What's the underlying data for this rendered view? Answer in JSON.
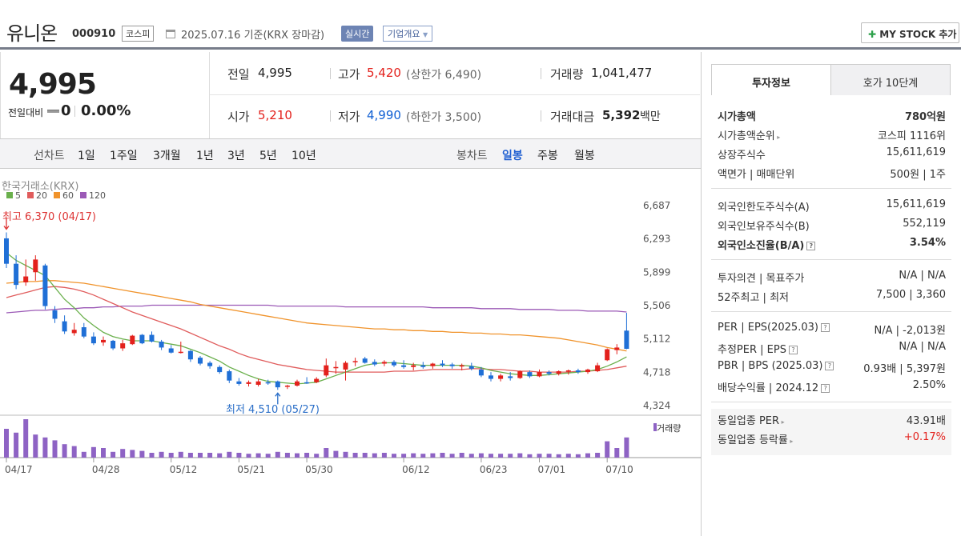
{
  "header": {
    "name": "유니온",
    "code": "000910",
    "market": "코스피",
    "date": "2025.07.16 기준(KRX 장마감)",
    "realtime": "실시간",
    "company_info": "기업개요",
    "mystock": "MY STOCK 추가"
  },
  "price": {
    "current": "4,995",
    "change_label": "전일대비",
    "change": "0",
    "change_pct": "0.00%"
  },
  "summary": {
    "prev_label": "전일",
    "prev": "4,995",
    "high_label": "고가",
    "high": "5,420",
    "upper_limit": "(상한가 6,490)",
    "volume_label": "거래량",
    "volume": "1,041,477",
    "open_label": "시가",
    "open": "5,210",
    "low_label": "저가",
    "low": "4,990",
    "lower_limit": "(하한가 3,500)",
    "amount_label": "거래대금",
    "amount": "5,392",
    "amount_unit": "백만"
  },
  "toolbar": {
    "line_label": "선차트",
    "periods": [
      "1일",
      "1주일",
      "3개월",
      "1년",
      "3년",
      "5년",
      "10년"
    ],
    "candle_label": "봉차트",
    "candles": [
      "일봉",
      "주봉",
      "월봉"
    ]
  },
  "chart_data": {
    "type": "candlestick",
    "source": "한국거래소(KRX)",
    "legend": [
      "5",
      "20",
      "60",
      "120"
    ],
    "legend_colors": [
      "#6ab04c",
      "#e05c5c",
      "#f0932b",
      "#9b59b6"
    ],
    "y_ticks": [
      "6,687",
      "6,293",
      "5,899",
      "5,506",
      "5,112",
      "4,718",
      "4,324"
    ],
    "x_ticks": [
      "04/17",
      "04/28",
      "05/12",
      "05/21",
      "05/30",
      "06/12",
      "06/23",
      "07/01",
      "07/10"
    ],
    "high_annot": "최고 6,370 (04/17)",
    "low_annot": "최저 4,510 (05/27)",
    "volume_label": "거래량",
    "ohlc": [
      [
        6300,
        6370,
        5950,
        6000
      ],
      [
        6000,
        6100,
        5700,
        5750
      ],
      [
        5780,
        6050,
        5740,
        5850
      ],
      [
        5900,
        6100,
        5800,
        6050
      ],
      [
        5980,
        6000,
        5460,
        5500
      ],
      [
        5450,
        5500,
        5300,
        5350
      ],
      [
        5320,
        5390,
        5170,
        5200
      ],
      [
        5180,
        5300,
        5150,
        5220
      ],
      [
        5250,
        5300,
        5120,
        5140
      ],
      [
        5140,
        5190,
        5040,
        5060
      ],
      [
        5070,
        5140,
        5030,
        5100
      ],
      [
        5090,
        5100,
        4980,
        5000
      ],
      [
        5000,
        5100,
        4970,
        5060
      ],
      [
        5050,
        5160,
        5040,
        5150
      ],
      [
        5160,
        5170,
        5050,
        5060
      ],
      [
        5160,
        5200,
        5070,
        5080
      ],
      [
        5080,
        5100,
        4980,
        5010
      ],
      [
        5000,
        5040,
        4940,
        4950
      ],
      [
        4960,
        5080,
        4940,
        4960
      ],
      [
        4970,
        4980,
        4840,
        4870
      ],
      [
        4890,
        4910,
        4800,
        4820
      ],
      [
        4830,
        4850,
        4760,
        4790
      ],
      [
        4780,
        4800,
        4700,
        4720
      ],
      [
        4730,
        4750,
        4590,
        4620
      ],
      [
        4610,
        4650,
        4560,
        4580
      ],
      [
        4580,
        4620,
        4550,
        4600
      ],
      [
        4570,
        4640,
        4550,
        4610
      ],
      [
        4600,
        4630,
        4570,
        4590
      ],
      [
        4610,
        4620,
        4510,
        4540
      ],
      [
        4550,
        4570,
        4520,
        4560
      ],
      [
        4560,
        4630,
        4550,
        4610
      ],
      [
        4600,
        4660,
        4580,
        4590
      ],
      [
        4600,
        4660,
        4590,
        4640
      ],
      [
        4680,
        4880,
        4660,
        4800
      ],
      [
        4780,
        4850,
        4700,
        4780
      ],
      [
        4750,
        4850,
        4620,
        4830
      ],
      [
        4840,
        4890,
        4790,
        4850
      ],
      [
        4880,
        4900,
        4820,
        4830
      ],
      [
        4840,
        4870,
        4790,
        4810
      ],
      [
        4820,
        4860,
        4790,
        4840
      ],
      [
        4840,
        4860,
        4780,
        4800
      ],
      [
        4800,
        4860,
        4760,
        4780
      ],
      [
        4780,
        4830,
        4740,
        4800
      ],
      [
        4800,
        4840,
        4760,
        4780
      ],
      [
        4790,
        4830,
        4760,
        4820
      ],
      [
        4820,
        4860,
        4780,
        4800
      ],
      [
        4810,
        4830,
        4760,
        4790
      ],
      [
        4790,
        4820,
        4740,
        4800
      ],
      [
        4790,
        4830,
        4740,
        4760
      ],
      [
        4750,
        4780,
        4660,
        4680
      ],
      [
        4680,
        4720,
        4610,
        4640
      ],
      [
        4640,
        4700,
        4610,
        4680
      ],
      [
        4670,
        4720,
        4620,
        4650
      ],
      [
        4650,
        4740,
        4640,
        4730
      ],
      [
        4720,
        4740,
        4650,
        4670
      ],
      [
        4670,
        4750,
        4660,
        4720
      ],
      [
        4720,
        4740,
        4680,
        4700
      ],
      [
        4700,
        4740,
        4680,
        4730
      ],
      [
        4730,
        4750,
        4690,
        4740
      ],
      [
        4740,
        4760,
        4700,
        4720
      ],
      [
        4720,
        4760,
        4700,
        4750
      ],
      [
        4730,
        4830,
        4720,
        4800
      ],
      [
        4860,
        5000,
        4850,
        4990
      ],
      [
        4980,
        5050,
        4930,
        5010
      ],
      [
        5210,
        5420,
        4990,
        4995
      ]
    ],
    "ma5": [
      6130,
      6040,
      5980,
      5920,
      5860,
      5720,
      5580,
      5480,
      5360,
      5270,
      5190,
      5140,
      5110,
      5090,
      5090,
      5090,
      5070,
      5050,
      5030,
      4990,
      4950,
      4900,
      4850,
      4780,
      4730,
      4680,
      4640,
      4610,
      4600,
      4590,
      4580,
      4590,
      4600,
      4640,
      4680,
      4720,
      4760,
      4800,
      4820,
      4830,
      4830,
      4820,
      4810,
      4800,
      4800,
      4800,
      4800,
      4800,
      4790,
      4770,
      4740,
      4720,
      4700,
      4690,
      4680,
      4680,
      4690,
      4700,
      4710,
      4720,
      4730,
      4750,
      4790,
      4840,
      4900
    ],
    "ma20": [
      5600,
      5630,
      5660,
      5690,
      5720,
      5730,
      5720,
      5700,
      5670,
      5630,
      5580,
      5530,
      5480,
      5430,
      5390,
      5350,
      5310,
      5270,
      5230,
      5180,
      5130,
      5080,
      5030,
      4990,
      4940,
      4900,
      4870,
      4840,
      4810,
      4790,
      4770,
      4750,
      4740,
      4730,
      4720,
      4720,
      4720,
      4720,
      4720,
      4720,
      4730,
      4730,
      4730,
      4740,
      4750,
      4750,
      4750,
      4750,
      4760,
      4760,
      4750,
      4750,
      4740,
      4730,
      4730,
      4720,
      4720,
      4720,
      4720,
      4730,
      4730,
      4740,
      4750,
      4770,
      4790
    ],
    "ma60": [
      5770,
      5780,
      5790,
      5790,
      5800,
      5800,
      5790,
      5780,
      5770,
      5750,
      5730,
      5710,
      5690,
      5670,
      5650,
      5630,
      5610,
      5590,
      5570,
      5550,
      5520,
      5500,
      5480,
      5460,
      5440,
      5420,
      5400,
      5380,
      5360,
      5340,
      5320,
      5300,
      5290,
      5280,
      5270,
      5260,
      5250,
      5240,
      5230,
      5230,
      5220,
      5220,
      5210,
      5210,
      5200,
      5200,
      5190,
      5190,
      5180,
      5180,
      5170,
      5170,
      5160,
      5160,
      5150,
      5140,
      5130,
      5120,
      5100,
      5080,
      5060,
      5040,
      5010,
      4990,
      4970
    ],
    "ma120": [
      5420,
      5430,
      5440,
      5450,
      5450,
      5460,
      5470,
      5470,
      5480,
      5480,
      5490,
      5490,
      5500,
      5500,
      5500,
      5510,
      5510,
      5510,
      5510,
      5510,
      5510,
      5510,
      5510,
      5510,
      5510,
      5510,
      5510,
      5510,
      5500,
      5500,
      5500,
      5500,
      5500,
      5500,
      5500,
      5490,
      5490,
      5490,
      5490,
      5490,
      5490,
      5490,
      5490,
      5490,
      5480,
      5480,
      5480,
      5480,
      5480,
      5470,
      5470,
      5470,
      5470,
      5460,
      5460,
      5460,
      5460,
      5450,
      5450,
      5450,
      5440,
      5440,
      5440,
      5440,
      5430
    ],
    "volume": [
      60,
      52,
      80,
      48,
      42,
      36,
      28,
      24,
      12,
      22,
      20,
      12,
      18,
      16,
      14,
      10,
      12,
      10,
      12,
      10,
      10,
      10,
      9,
      12,
      10,
      8,
      9,
      8,
      12,
      10,
      9,
      10,
      8,
      20,
      14,
      12,
      10,
      10,
      9,
      10,
      8,
      8,
      9,
      8,
      9,
      10,
      8,
      10,
      8,
      9,
      8,
      8,
      8,
      9,
      7,
      8,
      8,
      7,
      8,
      7,
      9,
      10,
      34,
      20,
      42
    ],
    "volume_max": 80
  },
  "right_panel": {
    "tabs": [
      "투자정보",
      "호가 10단계"
    ],
    "rows1": [
      {
        "label": "시가총액",
        "value": "780억원",
        "bold": true
      },
      {
        "label": "시가총액순위",
        "value": "코스피 1116위",
        "arrow": true
      },
      {
        "label": "상장주식수",
        "value": "15,611,619"
      },
      {
        "label": "액면가 | 매매단위",
        "value": "500원 | 1주"
      }
    ],
    "rows2": [
      {
        "label": "외국인한도주식수(A)",
        "value": "15,611,619"
      },
      {
        "label": "외국인보유주식수(B)",
        "value": "552,119"
      },
      {
        "label": "외국인소진율(B/A)",
        "value": "3.54%",
        "bold": true,
        "help": true
      }
    ],
    "rows3": [
      {
        "label": "투자의견 | 목표주가",
        "value": "N/A | N/A"
      },
      {
        "label": "52주최고 | 최저",
        "value": "7,500 | 3,360"
      }
    ],
    "rows4": [
      {
        "label": "PER | EPS(2025.03)",
        "value": "N/A | -2,013원",
        "help": true
      },
      {
        "label": "추정PER | EPS",
        "value": "N/A | N/A",
        "help": true
      },
      {
        "label": "PBR | BPS (2025.03)",
        "value": "0.93배 | 5,397원",
        "help": true
      },
      {
        "label": "배당수익률 | 2024.12",
        "value": "2.50%",
        "help": true
      }
    ],
    "rows5": [
      {
        "label": "동일업종 PER",
        "value": "43.91배",
        "arrow": true
      },
      {
        "label": "동일업종 등락률",
        "value": "+0.17%",
        "arrow": true,
        "red": true
      }
    ]
  }
}
